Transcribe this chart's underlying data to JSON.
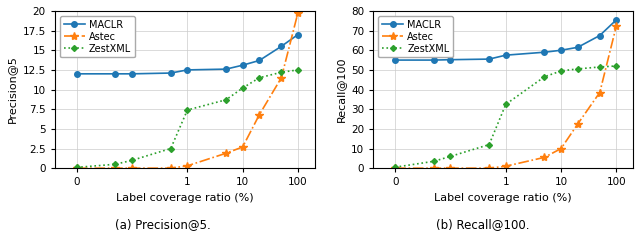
{
  "x_log_values": [
    0.01,
    0.05,
    0.1,
    0.5,
    1,
    5,
    10,
    20,
    50,
    100
  ],
  "precision5": {
    "MACLR": [
      12.0,
      12.0,
      12.0,
      12.1,
      12.5,
      12.6,
      13.1,
      13.7,
      15.5,
      17.0
    ],
    "Astec": [
      0.0,
      0.0,
      0.0,
      0.0,
      0.3,
      1.9,
      2.7,
      6.8,
      11.5,
      19.8
    ],
    "ZestXML": [
      0.1,
      0.5,
      1.0,
      2.5,
      7.4,
      8.7,
      10.2,
      11.5,
      12.2,
      12.5
    ]
  },
  "recall100": {
    "MACLR": [
      55.0,
      55.0,
      55.2,
      55.5,
      57.5,
      59.0,
      60.0,
      61.5,
      67.5,
      75.5
    ],
    "Astec": [
      0.0,
      0.0,
      0.0,
      0.0,
      1.0,
      5.5,
      10.0,
      22.5,
      38.5,
      72.5
    ],
    "ZestXML": [
      0.5,
      3.5,
      6.0,
      12.0,
      32.5,
      46.5,
      49.5,
      50.5,
      51.5,
      52.0
    ]
  },
  "colors": {
    "MACLR": "#1f77b4",
    "Astec": "#ff7f0e",
    "ZestXML": "#2ca02c"
  },
  "linestyles": {
    "MACLR": "-",
    "Astec": "-.",
    "ZestXML": ":"
  },
  "markers": {
    "MACLR": "o",
    "Astec": "*",
    "ZestXML": "D"
  },
  "markersizes": {
    "MACLR": 4,
    "Astec": 6,
    "ZestXML": 3
  },
  "ylabel1": "Precision@5",
  "ylabel2": "Recall@100",
  "xlabel": "Label coverage ratio (%)",
  "caption1": "(a) Precision@5.",
  "caption2": "(b) Recall@100.",
  "ylim1": [
    0,
    20
  ],
  "ylim2": [
    0,
    80
  ],
  "yticks1": [
    0.0,
    2.5,
    5.0,
    7.5,
    10.0,
    12.5,
    15.0,
    17.5,
    20.0
  ],
  "yticks2": [
    0,
    10,
    20,
    30,
    40,
    50,
    60,
    70,
    80
  ],
  "xtick_labels": [
    "0",
    "1",
    "10",
    "100"
  ],
  "xtick_positions_log": [
    0.01,
    1,
    10,
    100
  ],
  "xlim_log": [
    0.004,
    200
  ]
}
